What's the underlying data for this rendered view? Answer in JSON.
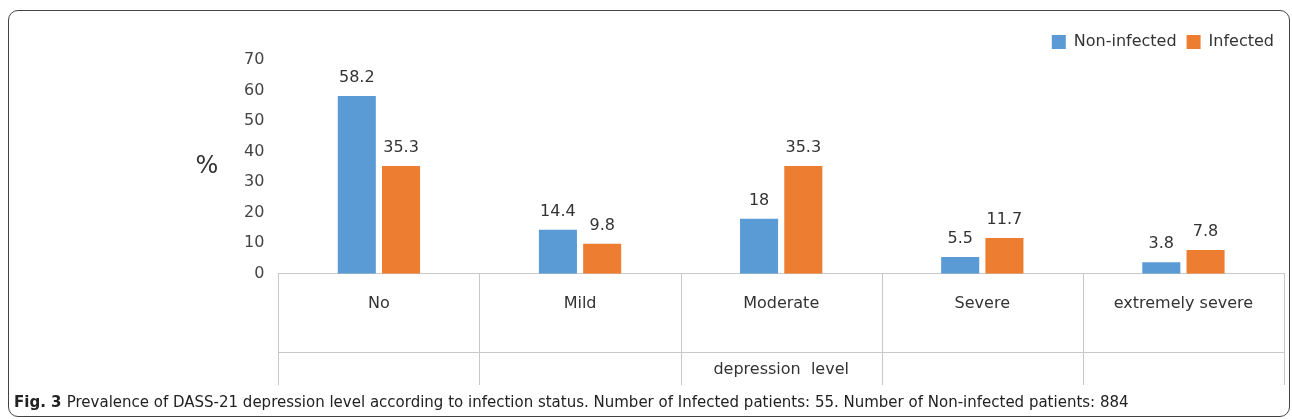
{
  "chart_data": {
    "type": "bar",
    "categories": [
      "No",
      "Mild",
      "Moderate",
      "Severe",
      "extremely severe"
    ],
    "series": [
      {
        "name": "Non-infected",
        "color": "#5b9bd5",
        "values": [
          58.2,
          14.4,
          18,
          5.5,
          3.8
        ]
      },
      {
        "name": "Infected",
        "color": "#ed7d31",
        "values": [
          35.3,
          9.8,
          35.3,
          11.7,
          7.8
        ]
      }
    ],
    "ylabel": "%",
    "xlabel": "depression  level",
    "ylim": [
      0,
      70
    ],
    "yticks": [
      0,
      10,
      20,
      30,
      40,
      50,
      60,
      70
    ],
    "grid": false,
    "legend": "top right",
    "data_labels": true,
    "annotations": [
      "Fig. 3",
      "Prevalence of DASS-21 depression level according to infection status. Number of Infected patients: 55. Number of Non-infected patients: 884"
    ]
  }
}
